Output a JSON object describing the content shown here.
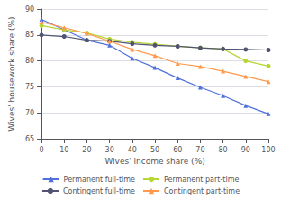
{
  "chart_data": {
    "type": "line",
    "xlabel": "Wives' income share (%)",
    "ylabel": "Wives' housework share (%)",
    "x": [
      0,
      10,
      20,
      30,
      40,
      50,
      60,
      70,
      80,
      90,
      100
    ],
    "series": [
      {
        "name": "Permanent full-time",
        "marker": "triangle",
        "line_style": "solid",
        "values": [
          88.0,
          86.0,
          84.0,
          83.0,
          80.5,
          78.7,
          76.7,
          74.9,
          73.3,
          71.4,
          69.8
        ]
      },
      {
        "name": "Permanent part-time",
        "marker": "circle",
        "line_style": "solid",
        "values": [
          86.8,
          86.0,
          85.4,
          84.2,
          83.6,
          83.2,
          82.8,
          82.5,
          82.3,
          80.0,
          79.0
        ]
      },
      {
        "name": "Contingent full-time",
        "marker": "circle",
        "line_style": "solid",
        "values": [
          85.0,
          84.7,
          84.0,
          83.8,
          83.3,
          83.0,
          82.8,
          82.5,
          82.3,
          82.2,
          82.1
        ]
      },
      {
        "name": "Contingent part-time",
        "marker": "triangle",
        "line_style": "solid",
        "values": [
          87.5,
          86.4,
          85.3,
          83.8,
          82.2,
          81.0,
          79.5,
          78.9,
          78.0,
          77.0,
          76.0
        ]
      }
    ],
    "xlim": [
      0,
      100
    ],
    "xticks": [
      0,
      10,
      20,
      30,
      40,
      50,
      60,
      70,
      80,
      90,
      100
    ],
    "ylim": [
      65,
      90
    ],
    "yticks": [
      65,
      70,
      75,
      80,
      85,
      90
    ],
    "grid": true,
    "legend": "bottom"
  }
}
